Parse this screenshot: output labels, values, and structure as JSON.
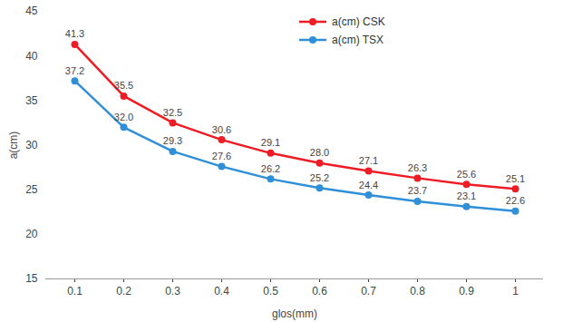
{
  "chart_data": {
    "type": "line",
    "x_label": "glos(mm)",
    "y_label": "a(cm)",
    "categories": [
      "0.1",
      "0.2",
      "0.3",
      "0.4",
      "0.5",
      "0.6",
      "0.7",
      "0.8",
      "0.9",
      "1"
    ],
    "series": [
      {
        "name": "a(cm) CSK",
        "color": "#ee1c25",
        "values": [
          41.3,
          35.5,
          32.5,
          30.6,
          29.1,
          28.0,
          27.1,
          26.3,
          25.6,
          25.1
        ],
        "value_labels": [
          "41.3",
          "35.5",
          "32.5",
          "30.6",
          "29.1",
          "28.0",
          "27.1",
          "26.3",
          "25.6",
          "25.1"
        ]
      },
      {
        "name": "a(cm) TSX",
        "color": "#2f8fd8",
        "values": [
          37.2,
          32.0,
          29.3,
          27.6,
          26.2,
          25.2,
          24.4,
          23.7,
          23.1,
          22.6
        ],
        "value_labels": [
          "37.2",
          "32.0",
          "29.3",
          "27.6",
          "26.2",
          "25.2",
          "24.4",
          "23.7",
          "23.1",
          "22.6"
        ]
      }
    ],
    "ylim": [
      15,
      45
    ],
    "yticks": [
      15,
      20,
      25,
      30,
      35,
      40,
      45
    ],
    "grid": false,
    "legend": "upper right",
    "data_labels": true,
    "marker": "circle"
  }
}
